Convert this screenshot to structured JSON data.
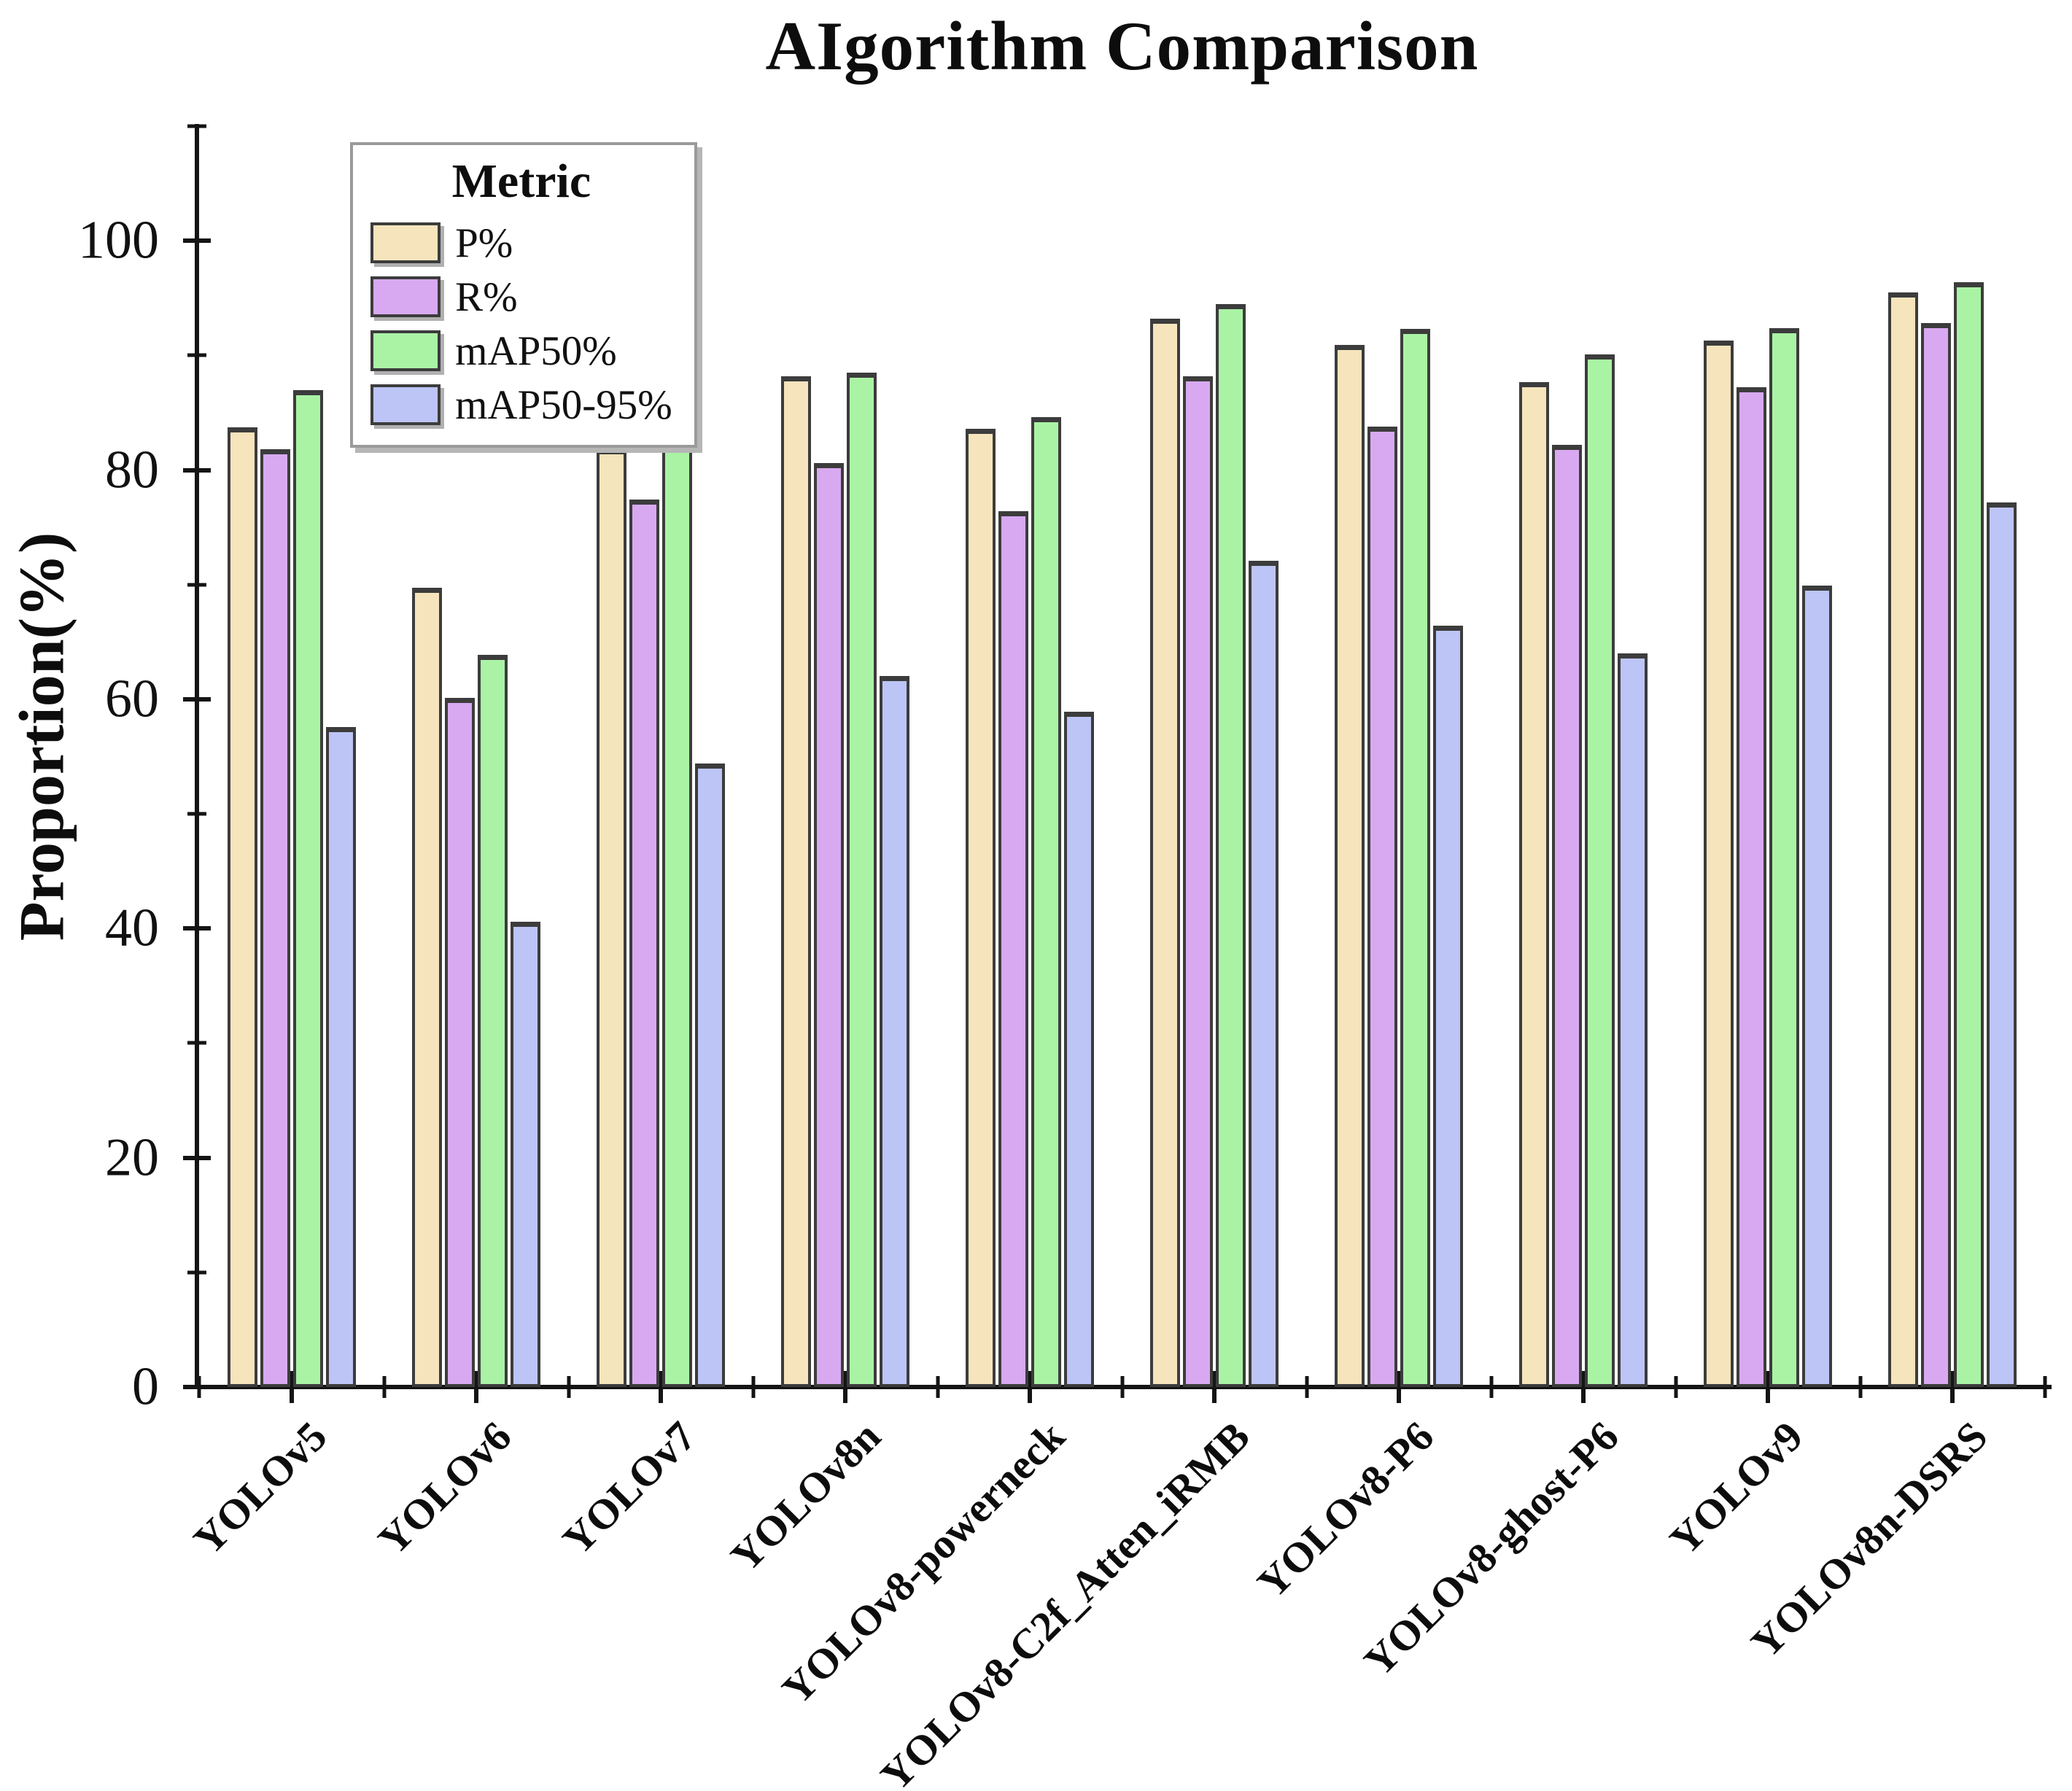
{
  "title": "AIgorithm Comparison",
  "y_axis": {
    "label": "Proportion(%)",
    "major_ticks": [
      0,
      20,
      40,
      60,
      80,
      100
    ],
    "minor_ticks": [
      10,
      30,
      50,
      70,
      90,
      110
    ],
    "max": 110
  },
  "legend": {
    "title": "Metric",
    "items": [
      "P%",
      "R%",
      "mAP50%",
      "mAP50-95%"
    ]
  },
  "colors": {
    "p": "#f6e4bc",
    "r": "#d8a9f0",
    "map50": "#aaf3a5",
    "map5095": "#bcc5f6",
    "bar_edge": "#3c3c3c",
    "axis": "#141414"
  },
  "chart_data": {
    "type": "bar",
    "title": "AIgorithm Comparison",
    "xlabel": "",
    "ylabel": "Proportion(%)",
    "ylim": [
      0,
      110
    ],
    "yticks": [
      0,
      20,
      40,
      60,
      80,
      100
    ],
    "grid": false,
    "legend_title": "Metric",
    "legend_position": "upper left",
    "categories": [
      "YOLOv5",
      "YOLOv6",
      "YOLOv7",
      "YOLOv8n",
      "YOLOv8-powerneck",
      "YOLOv8-C2f_Atten_iRMB",
      "YOLOv8-P6",
      "YOLOv8-ghost-P6",
      "YOLOv9",
      "YOLOv8n-DSRS"
    ],
    "series": [
      {
        "name": "P%",
        "color": "#f6e4bc",
        "values": [
          83.7,
          69.7,
          81.8,
          88.2,
          83.6,
          93.2,
          90.9,
          87.7,
          91.3,
          95.5
        ]
      },
      {
        "name": "R%",
        "color": "#d8a9f0",
        "values": [
          81.8,
          60.1,
          77.4,
          80.6,
          76.4,
          88.2,
          83.8,
          82.2,
          87.2,
          92.8
        ]
      },
      {
        "name": "mAP50%",
        "color": "#aaf3a5",
        "values": [
          87.0,
          63.9,
          83.1,
          88.5,
          84.6,
          94.5,
          92.3,
          90.1,
          92.4,
          96.4
        ]
      },
      {
        "name": "mAP50-95%",
        "color": "#bcc5f6",
        "values": [
          57.6,
          40.6,
          54.4,
          62.0,
          58.9,
          72.1,
          66.4,
          64.0,
          69.9,
          77.2
        ]
      }
    ]
  }
}
